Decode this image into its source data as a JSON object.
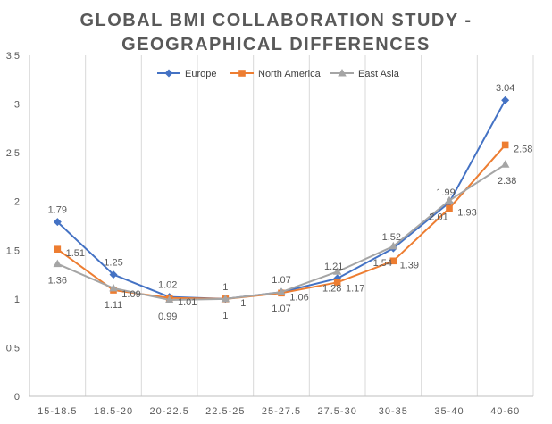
{
  "chart_data": {
    "type": "line",
    "title": [
      "GLOBAL BMI COLLABORATION STUDY -",
      "GEOGRAPHICAL DIFFERENCES"
    ],
    "xlabel": "",
    "ylabel": "",
    "categories": [
      "15-18.5",
      "18.5-20",
      "20-22.5",
      "22.5-25",
      "25-27.5",
      "27.5-30",
      "30-35",
      "35-40",
      "40-60"
    ],
    "ylim": [
      0,
      3.5
    ],
    "yticks": [
      "0",
      "0.5",
      "1",
      "1.5",
      "2",
      "2.5",
      "3",
      "3.5"
    ],
    "grid": "vertical",
    "legend_position": "top",
    "series": [
      {
        "name": "Europe",
        "color": "#4472c4",
        "marker": "diamond",
        "values": [
          1.79,
          1.25,
          1.02,
          1,
          1.07,
          1.21,
          1.52,
          1.99,
          3.04
        ],
        "labels": [
          "1.79",
          "1.25",
          "1.02",
          "1",
          "1.07",
          "1.21",
          "1.52",
          "1.99",
          "3.04"
        ]
      },
      {
        "name": "North America",
        "color": "#ed7d31",
        "marker": "square",
        "values": [
          1.51,
          1.09,
          1.01,
          1,
          1.06,
          1.17,
          1.39,
          1.93,
          2.58
        ],
        "labels": [
          "1.51",
          "1.09",
          "1.01",
          "1",
          "1.06",
          "1.17",
          "1.39",
          "1.93",
          "2.58"
        ]
      },
      {
        "name": "East Asia",
        "color": "#a5a5a5",
        "marker": "triangle",
        "values": [
          1.36,
          1.11,
          0.99,
          1,
          1.07,
          1.28,
          1.54,
          2.01,
          2.38
        ],
        "labels": [
          "1.36",
          "1.11",
          "0.99",
          "1",
          "1.07",
          "1.28",
          "1.54",
          "2.01",
          "2.38"
        ]
      }
    ]
  }
}
